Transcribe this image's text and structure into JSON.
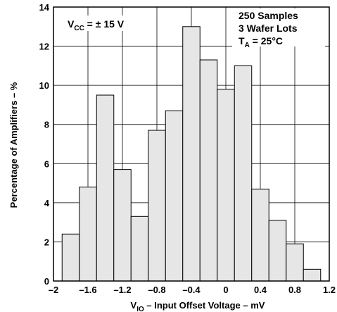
{
  "chart_data": {
    "type": "bar",
    "title": "",
    "xlabel": {
      "main": "V",
      "sub": "IO",
      "rest": " – Input Offset Voltage – mV"
    },
    "ylabel": "Percentage of Amplifiers – %",
    "xlim": [
      -2,
      1.2
    ],
    "ylim": [
      0,
      14
    ],
    "xticks": [
      -2,
      -1.6,
      -1.2,
      -0.8,
      -0.4,
      0,
      0.4,
      0.8,
      1.2
    ],
    "xtick_labels": [
      "–2",
      "–1.6",
      "–1.2",
      "–0.8",
      "–0.4",
      "0",
      "0.4",
      "0.8",
      "1.2"
    ],
    "yticks": [
      0,
      2,
      4,
      6,
      8,
      10,
      12,
      14
    ],
    "ytick_labels": [
      "0",
      "2",
      "4",
      "6",
      "8",
      "10",
      "12",
      "14"
    ],
    "bin_width": 0.2,
    "bin_starts": [
      -1.9,
      -1.7,
      -1.5,
      -1.3,
      -1.1,
      -0.9,
      -0.7,
      -0.5,
      -0.3,
      -0.1,
      0.1,
      0.3,
      0.5,
      0.7,
      0.9
    ],
    "values": [
      2.4,
      4.8,
      9.5,
      5.7,
      3.3,
      7.7,
      8.7,
      13.0,
      11.3,
      9.8,
      11.0,
      4.7,
      3.1,
      1.9,
      0.6
    ],
    "grid": true,
    "bar_fill": "#e6e6e6",
    "bar_edge": "#000000"
  },
  "annotations": {
    "vcc": {
      "main": "V",
      "sub": "CC",
      "rest": " = ± 15 V"
    },
    "samples": "250 Samples",
    "lots": "3 Wafer Lots",
    "ta": {
      "main": "T",
      "sub": "A",
      "rest": " = 25°C"
    }
  }
}
